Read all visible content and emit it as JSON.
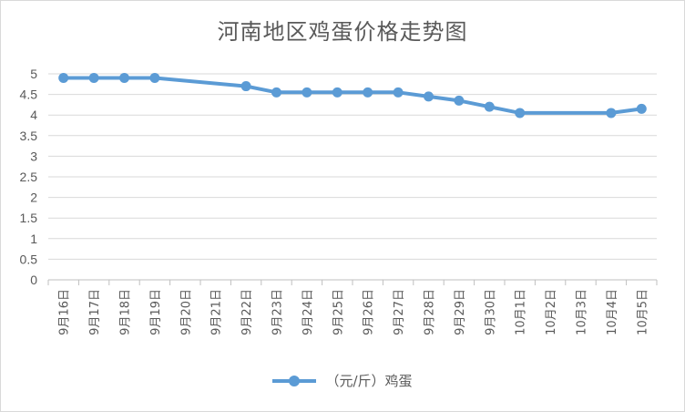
{
  "chart_data": {
    "type": "line",
    "title": "河南地区鸡蛋价格走势图",
    "categories": [
      "9月16日",
      "9月17日",
      "9月18日",
      "9月19日",
      "9月20日",
      "9月21日",
      "9月22日",
      "9月23日",
      "9月24日",
      "9月25日",
      "9月26日",
      "9月27日",
      "9月28日",
      "9月29日",
      "9月30日",
      "10月1日",
      "10月2日",
      "10月3日",
      "10月4日",
      "10月5日"
    ],
    "yticks": [
      "0",
      "0.5",
      "1",
      "1.5",
      "2",
      "2.5",
      "3",
      "3.5",
      "4",
      "4.5",
      "5"
    ],
    "ylim": [
      0,
      5
    ],
    "grid": true,
    "legend_position": "bottom",
    "series": [
      {
        "name": "（元/斤）鸡蛋",
        "color": "#5b9bd5",
        "values": [
          4.9,
          4.9,
          4.9,
          4.9,
          null,
          null,
          4.7,
          4.55,
          4.55,
          4.55,
          4.55,
          4.55,
          4.45,
          4.35,
          4.2,
          4.05,
          null,
          null,
          4.05,
          4.15
        ]
      }
    ]
  }
}
